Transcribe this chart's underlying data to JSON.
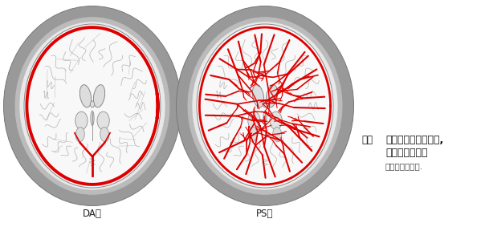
{
  "title_fig": "図５",
  "title_main1": "髄膜の異常増強効果,",
  "title_main2": "２つのパターン",
  "subtitle": "文献４より作成.",
  "label_DA": "DA型",
  "label_PS": "PS型",
  "bg_color": "#ffffff",
  "gray_outer": "#999999",
  "gray_mid": "#bbbbbb",
  "white_inner": "#f8f8f8",
  "red_color": "#dd0000",
  "brain_outline": "#666666",
  "sulci_color": "#aaaaaa",
  "ventricle_color": "#dddddd",
  "figsize": [
    6.04,
    2.83
  ],
  "dpi": 100
}
